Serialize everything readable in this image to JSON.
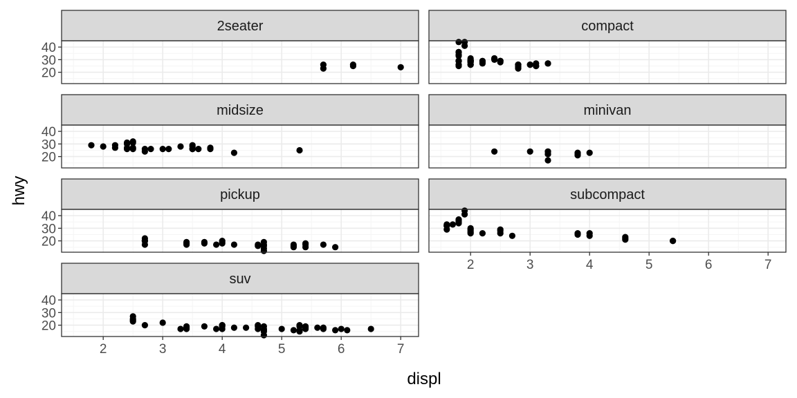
{
  "chart_data": {
    "type": "scatter",
    "facet_variable": "class",
    "xlabel": "displ",
    "ylabel": "hwy",
    "xlim": [
      1.3,
      7.3
    ],
    "ylim": [
      11,
      45
    ],
    "x_ticks": [
      2,
      3,
      4,
      5,
      6,
      7
    ],
    "y_ticks": [
      20,
      30,
      40
    ],
    "grid": true,
    "legend": "none",
    "colors": {
      "point": "#000000",
      "strip_fill": "#d9d9d9",
      "strip_border": "#333333",
      "panel_border": "#333333",
      "grid_major": "#ebebeb",
      "grid_minor": "#f5f5f5",
      "tick_text": "#4d4d4d"
    },
    "panels": [
      {
        "name": "2seater",
        "points": [
          [
            5.7,
            26
          ],
          [
            5.7,
            23
          ],
          [
            6.2,
            26
          ],
          [
            6.2,
            25
          ],
          [
            7.0,
            24
          ]
        ]
      },
      {
        "name": "compact",
        "points": [
          [
            1.8,
            29
          ],
          [
            1.8,
            29
          ],
          [
            2.0,
            31
          ],
          [
            2.0,
            30
          ],
          [
            2.8,
            26
          ],
          [
            2.8,
            26
          ],
          [
            3.1,
            27
          ],
          [
            1.8,
            26
          ],
          [
            1.8,
            25
          ],
          [
            2.0,
            28
          ],
          [
            2.0,
            29
          ],
          [
            2.8,
            25
          ],
          [
            2.8,
            25
          ],
          [
            3.1,
            25
          ],
          [
            3.1,
            25
          ],
          [
            2.2,
            27
          ],
          [
            2.2,
            29
          ],
          [
            2.4,
            31
          ],
          [
            2.4,
            31
          ],
          [
            3.0,
            26
          ],
          [
            3.0,
            26
          ],
          [
            3.3,
            27
          ],
          [
            2.0,
            29
          ],
          [
            2.0,
            29
          ],
          [
            2.0,
            28
          ],
          [
            2.0,
            29
          ],
          [
            2.0,
            26
          ],
          [
            2.0,
            26
          ],
          [
            1.8,
            29
          ],
          [
            1.8,
            44
          ],
          [
            1.9,
            44
          ],
          [
            2.0,
            29
          ],
          [
            2.5,
            29
          ],
          [
            2.5,
            29
          ],
          [
            2.8,
            23
          ],
          [
            2.8,
            24
          ],
          [
            1.8,
            36
          ],
          [
            1.8,
            36
          ],
          [
            1.8,
            34
          ],
          [
            1.8,
            33
          ],
          [
            1.9,
            41
          ],
          [
            2.0,
            29
          ],
          [
            2.4,
            30
          ],
          [
            2.5,
            28
          ],
          [
            2.8,
            26
          ],
          [
            3.3,
            27
          ],
          [
            2.2,
            28
          ]
        ]
      },
      {
        "name": "midsize",
        "points": [
          [
            1.8,
            29
          ],
          [
            2.0,
            28
          ],
          [
            2.2,
            27
          ],
          [
            2.2,
            29
          ],
          [
            2.4,
            31
          ],
          [
            2.4,
            30
          ],
          [
            2.4,
            26
          ],
          [
            2.5,
            26
          ],
          [
            2.5,
            27
          ],
          [
            2.5,
            31
          ],
          [
            2.5,
            32
          ],
          [
            2.7,
            24
          ],
          [
            2.7,
            26
          ],
          [
            2.8,
            26
          ],
          [
            3.0,
            26
          ],
          [
            3.1,
            26
          ],
          [
            3.3,
            28
          ],
          [
            3.5,
            26
          ],
          [
            3.5,
            29
          ],
          [
            3.5,
            26
          ],
          [
            3.6,
            26
          ],
          [
            3.8,
            26
          ],
          [
            3.8,
            27
          ],
          [
            4.2,
            23
          ],
          [
            5.3,
            25
          ],
          [
            2.4,
            27
          ],
          [
            2.4,
            31
          ],
          [
            3.5,
            28
          ]
        ]
      },
      {
        "name": "minivan",
        "points": [
          [
            2.4,
            24
          ],
          [
            3.0,
            24
          ],
          [
            3.3,
            22
          ],
          [
            3.3,
            22
          ],
          [
            3.3,
            24
          ],
          [
            3.3,
            24
          ],
          [
            3.3,
            17
          ],
          [
            3.8,
            22
          ],
          [
            3.8,
            21
          ],
          [
            3.8,
            23
          ],
          [
            4.0,
            23
          ]
        ]
      },
      {
        "name": "pickup",
        "points": [
          [
            2.7,
            20
          ],
          [
            2.7,
            20
          ],
          [
            2.7,
            22
          ],
          [
            3.4,
            17
          ],
          [
            3.4,
            19
          ],
          [
            3.7,
            18
          ],
          [
            3.7,
            19
          ],
          [
            3.9,
            17
          ],
          [
            4.0,
            20
          ],
          [
            4.0,
            18
          ],
          [
            4.2,
            17
          ],
          [
            4.6,
            17
          ],
          [
            4.6,
            16
          ],
          [
            4.7,
            17
          ],
          [
            4.7,
            12
          ],
          [
            4.7,
            16
          ],
          [
            4.7,
            19
          ],
          [
            5.2,
            16
          ],
          [
            5.2,
            17
          ],
          [
            5.4,
            17
          ],
          [
            5.4,
            15
          ],
          [
            5.7,
            17
          ],
          [
            5.9,
            15
          ],
          [
            2.7,
            17
          ],
          [
            3.4,
            18
          ],
          [
            4.0,
            19
          ],
          [
            4.7,
            14
          ],
          [
            5.2,
            15
          ],
          [
            5.4,
            18
          ]
        ]
      },
      {
        "name": "subcompact",
        "points": [
          [
            1.6,
            33
          ],
          [
            1.6,
            32
          ],
          [
            1.6,
            32
          ],
          [
            1.6,
            29
          ],
          [
            1.6,
            32
          ],
          [
            1.8,
            34
          ],
          [
            1.8,
            36
          ],
          [
            1.8,
            36
          ],
          [
            1.8,
            35
          ],
          [
            2.0,
            29
          ],
          [
            2.0,
            26
          ],
          [
            2.0,
            28
          ],
          [
            2.0,
            27
          ],
          [
            2.2,
            26
          ],
          [
            2.5,
            26
          ],
          [
            2.5,
            28
          ],
          [
            2.7,
            24
          ],
          [
            3.8,
            26
          ],
          [
            3.8,
            25
          ],
          [
            4.0,
            26
          ],
          [
            4.0,
            24
          ],
          [
            4.6,
            21
          ],
          [
            4.6,
            22
          ],
          [
            4.6,
            23
          ],
          [
            5.4,
            20
          ],
          [
            5.4,
            20
          ],
          [
            1.9,
            44
          ],
          [
            1.9,
            41
          ],
          [
            2.5,
            29
          ],
          [
            1.7,
            33
          ],
          [
            1.8,
            37
          ],
          [
            2.0,
            30
          ]
        ]
      },
      {
        "name": "suv",
        "points": [
          [
            2.5,
            27
          ],
          [
            2.5,
            25
          ],
          [
            2.5,
            23
          ],
          [
            2.5,
            24
          ],
          [
            2.7,
            20
          ],
          [
            3.0,
            22
          ],
          [
            3.3,
            17
          ],
          [
            3.4,
            17
          ],
          [
            3.4,
            19
          ],
          [
            3.7,
            19
          ],
          [
            3.9,
            17
          ],
          [
            4.0,
            17
          ],
          [
            4.0,
            19
          ],
          [
            4.0,
            20
          ],
          [
            4.2,
            18
          ],
          [
            4.4,
            18
          ],
          [
            4.6,
            17
          ],
          [
            4.6,
            19
          ],
          [
            4.7,
            17
          ],
          [
            4.7,
            12
          ],
          [
            4.7,
            15
          ],
          [
            4.7,
            19
          ],
          [
            5.0,
            17
          ],
          [
            5.2,
            16
          ],
          [
            5.3,
            16
          ],
          [
            5.3,
            20
          ],
          [
            5.3,
            15
          ],
          [
            5.4,
            18
          ],
          [
            5.4,
            17
          ],
          [
            5.6,
            18
          ],
          [
            5.7,
            17
          ],
          [
            5.9,
            16
          ],
          [
            6.0,
            17
          ],
          [
            6.1,
            16
          ],
          [
            6.5,
            17
          ],
          [
            4.0,
            20
          ],
          [
            4.6,
            20
          ],
          [
            5.3,
            19
          ],
          [
            5.4,
            19
          ],
          [
            5.7,
            18
          ],
          [
            4.7,
            16
          ],
          [
            3.4,
            18
          ]
        ]
      }
    ]
  }
}
